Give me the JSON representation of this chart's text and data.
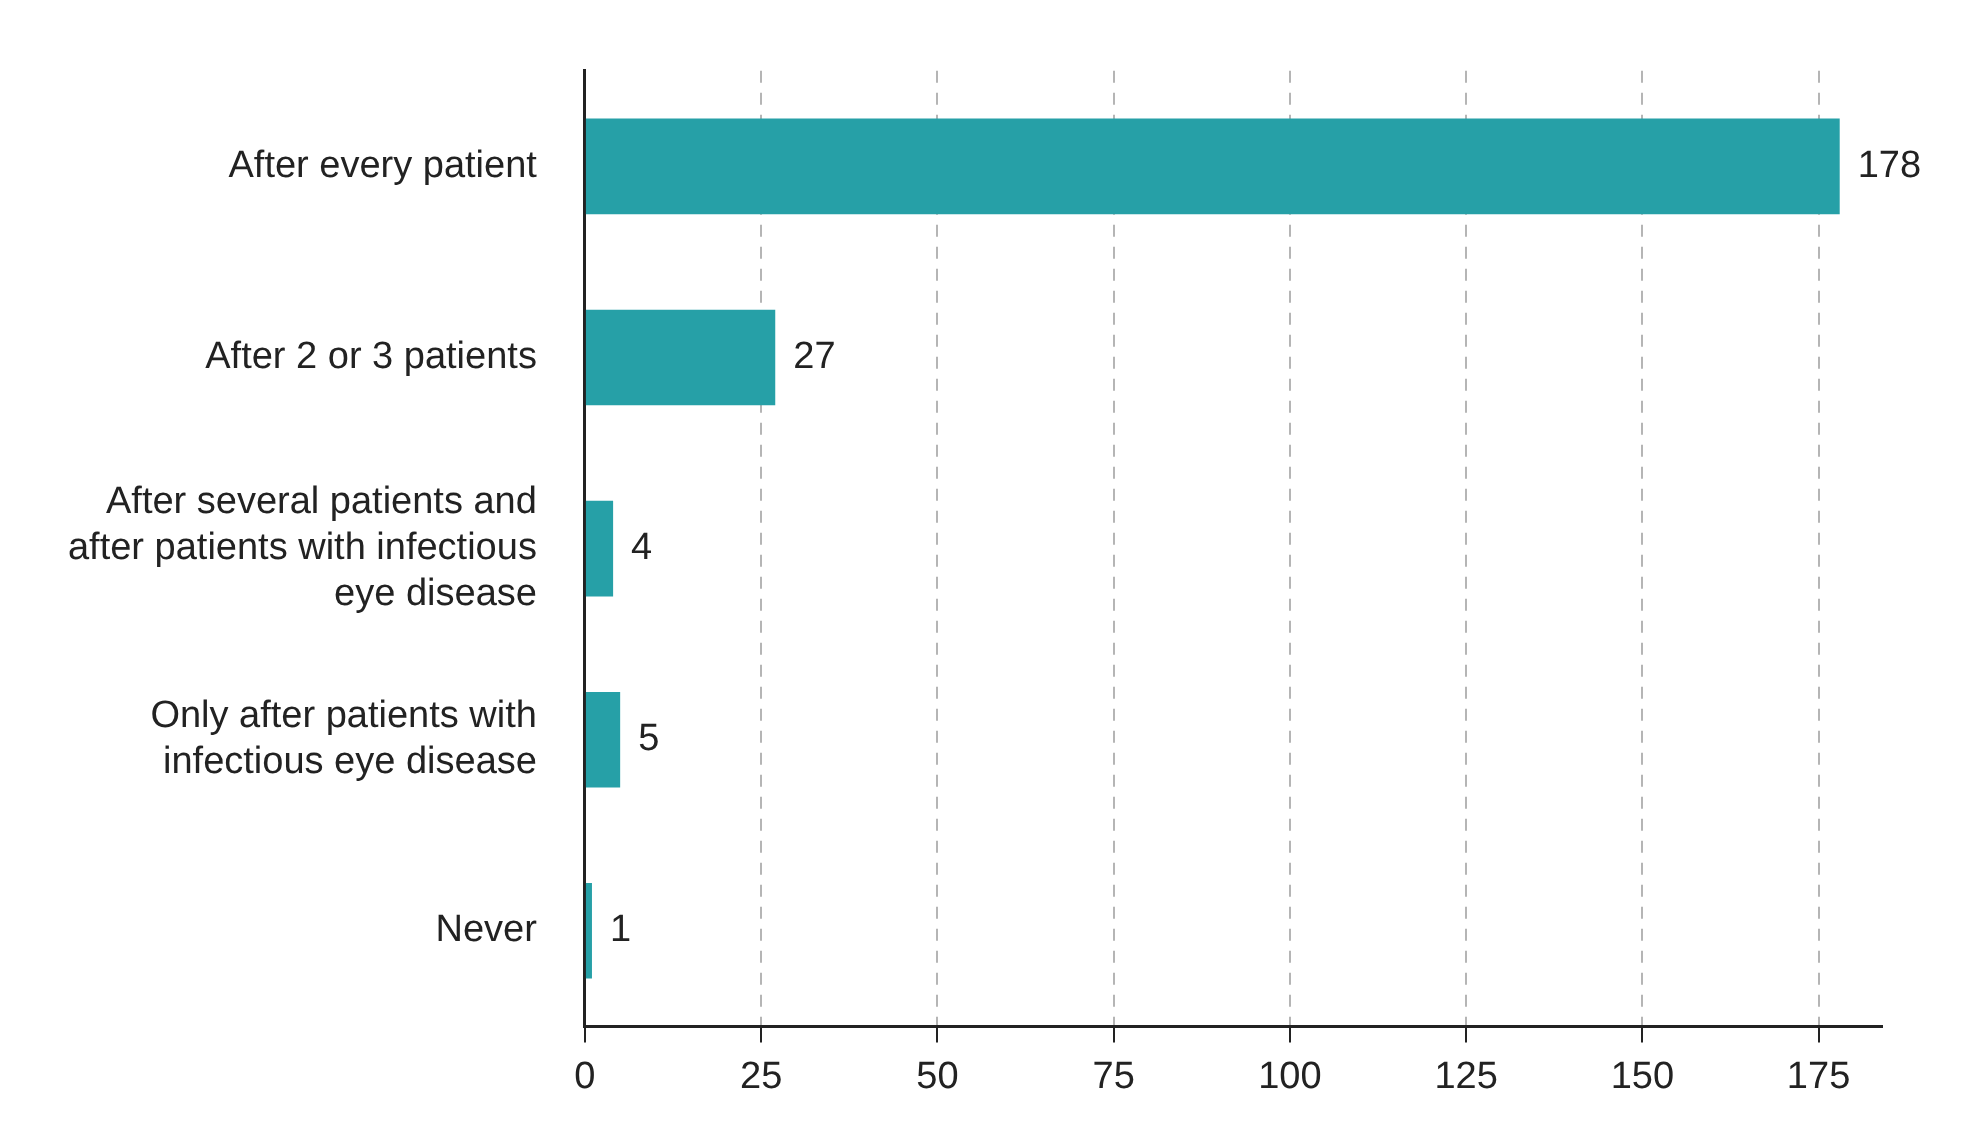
{
  "chart_data": {
    "type": "bar",
    "orientation": "horizontal",
    "categories": [
      "After every patient",
      "After 2 or 3 patients",
      "After several patients and after patients with infectious eye disease",
      "Only after patients with infectious eye disease",
      "Never"
    ],
    "values": [
      178,
      27,
      4,
      5,
      1
    ],
    "color": "#26a0a7",
    "xlim": [
      0,
      184
    ],
    "xticks": [
      0,
      25,
      50,
      75,
      100,
      125,
      150,
      175
    ],
    "grid": "x",
    "data_labels": true
  }
}
